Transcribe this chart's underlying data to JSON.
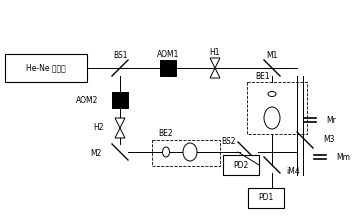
{
  "figsize": [
    3.58,
    2.18
  ],
  "dpi": 100,
  "labels": {
    "laser": "He-Ne 激光器",
    "BS1": "BS1",
    "AOM1": "AOM1",
    "H1": "H1",
    "M1": "M1",
    "AOM2": "AOM2",
    "BE1": "BE1",
    "H2": "H2",
    "BE2": "BE2",
    "M2": "M2",
    "BS2": "BS2",
    "PD1": "PD1",
    "PD2": "PD2",
    "Mr": "Mr",
    "M3": "M3",
    "M4": "iM4",
    "Mm": "Mm"
  }
}
